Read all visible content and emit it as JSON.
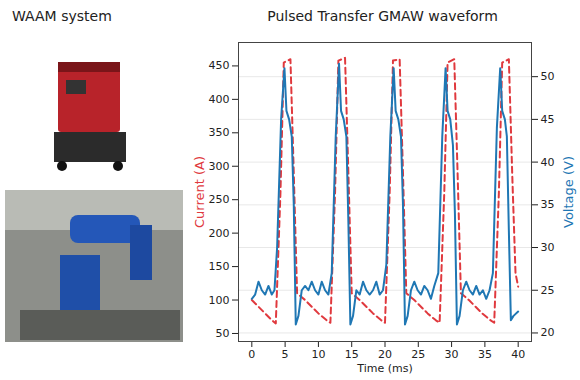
{
  "left_panel": {
    "title": "WAAM system"
  },
  "chart_data": {
    "type": "line",
    "title": "Pulsed Transfer GMAW waveform",
    "x_label": "Time (ms)",
    "y_label": "Current (A)",
    "y2_label": "Voltage (V)",
    "xlim": [
      -2,
      42
    ],
    "xticks": [
      0,
      5,
      10,
      15,
      20,
      25,
      30,
      35,
      40
    ],
    "ylim": [
      38,
      485
    ],
    "yticks": [
      50,
      100,
      150,
      200,
      250,
      300,
      350,
      400,
      450
    ],
    "y2lim": [
      19,
      54
    ],
    "y2ticks": [
      20,
      25,
      30,
      35,
      40,
      45,
      50
    ],
    "grid": true,
    "series": [
      {
        "color": "#e0393e",
        "line_style": "dashed",
        "x": [
          0,
          1,
          2,
          3,
          3.6,
          4.3,
          4.8,
          5.8,
          6.3,
          6.8,
          8,
          9,
          10,
          11.2,
          11.8,
          12.5,
          13,
          14,
          14.5,
          15,
          16.2,
          17.2,
          18.2,
          19.4,
          20,
          20.7,
          21.2,
          22.2,
          22.7,
          23.2,
          24.4,
          25.4,
          26.4,
          27.6,
          28.2,
          28.9,
          29.4,
          30.4,
          30.9,
          31.4,
          32.6,
          33.6,
          34.6,
          35.8,
          36.4,
          37.1,
          37.6,
          38.6,
          39.1,
          39.6,
          40
        ],
        "values": [
          100,
          90,
          80,
          70,
          65,
          260,
          455,
          460,
          290,
          110,
          100,
          90,
          80,
          70,
          66,
          260,
          458,
          462,
          290,
          110,
          100,
          90,
          80,
          70,
          66,
          260,
          458,
          460,
          290,
          110,
          100,
          90,
          80,
          70,
          66,
          260,
          455,
          460,
          290,
          110,
          100,
          90,
          80,
          70,
          66,
          260,
          455,
          460,
          290,
          140,
          120
        ]
      },
      {
        "color": "#1f77b4",
        "line_style": "solid",
        "axis": "y2",
        "x": [
          0,
          0.5,
          1,
          1.5,
          2,
          2.5,
          3,
          3.4,
          3.8,
          4.4,
          4.9,
          5.2,
          5.6,
          6,
          6.3,
          6.6,
          7,
          7.5,
          8,
          8.5,
          9,
          9.5,
          10,
          10.5,
          11,
          11.5,
          12,
          12.6,
          13.1,
          13.4,
          13.8,
          14.2,
          14.5,
          14.8,
          15.2,
          15.7,
          16.2,
          16.7,
          17.2,
          17.7,
          18.2,
          18.7,
          19.2,
          19.7,
          20.2,
          20.8,
          21.3,
          21.6,
          22,
          22.4,
          22.7,
          23,
          23.4,
          23.9,
          24.4,
          24.9,
          25.4,
          25.9,
          26.4,
          26.9,
          27.4,
          28,
          28.6,
          29.1,
          29.4,
          29.8,
          30.2,
          30.5,
          30.8,
          31.2,
          31.7,
          32.2,
          32.7,
          33.2,
          33.7,
          34.2,
          34.7,
          35.2,
          35.7,
          36.2,
          36.8,
          37.3,
          37.6,
          38,
          38.3,
          38.6,
          38.9,
          39.3,
          40
        ],
        "values": [
          24,
          24.5,
          26,
          25,
          24.5,
          25.5,
          24.5,
          25,
          30,
          45,
          51,
          46,
          45,
          43,
          35,
          21,
          22,
          25,
          25.5,
          25,
          26,
          25,
          24.5,
          26,
          25,
          24.5,
          27,
          43,
          51.5,
          46,
          45,
          43,
          33,
          21,
          22,
          25,
          24.5,
          26,
          25,
          24.5,
          25,
          26,
          24.5,
          25,
          28,
          43,
          51,
          46,
          45,
          43,
          35,
          21,
          22,
          25,
          26,
          25,
          24.5,
          25.5,
          25,
          24,
          25.5,
          27,
          43,
          51,
          46,
          45,
          42,
          34,
          21,
          22,
          25,
          26,
          25,
          24.5,
          25.5,
          24.5,
          25,
          24,
          25,
          27,
          44,
          51,
          46,
          45,
          43,
          32,
          21.5,
          22,
          22.5
        ]
      }
    ]
  }
}
